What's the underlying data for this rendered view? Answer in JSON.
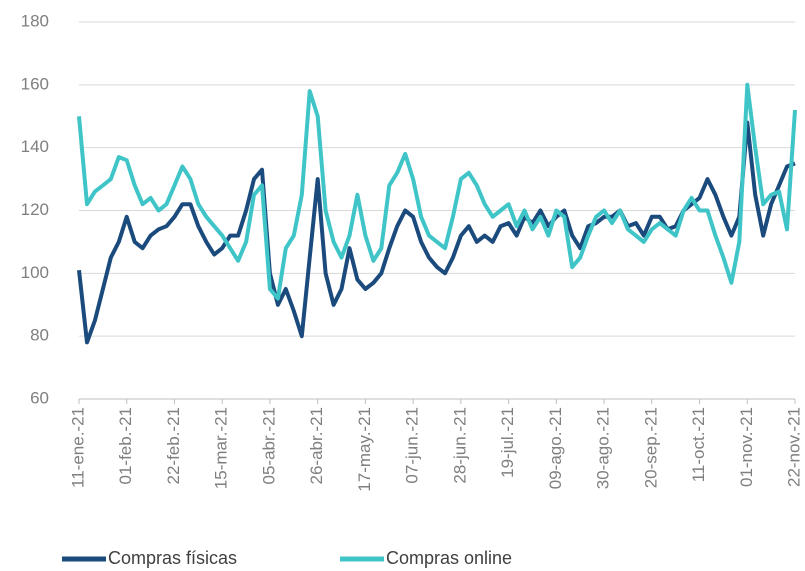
{
  "chart_data": {
    "type": "line",
    "categories": [
      "11-ene.-21",
      null,
      null,
      null,
      null,
      null,
      "01-feb.-21",
      null,
      null,
      null,
      null,
      null,
      "22-feb.-21",
      null,
      null,
      null,
      null,
      null,
      "15-mar.-21",
      null,
      null,
      null,
      null,
      null,
      "05-abr.-21",
      null,
      null,
      null,
      null,
      null,
      "26-abr.-21",
      null,
      null,
      null,
      null,
      null,
      "17-may.-21",
      null,
      null,
      null,
      null,
      null,
      "07-jun.-21",
      null,
      null,
      null,
      null,
      null,
      "28-jun.-21",
      null,
      null,
      null,
      null,
      null,
      "19-jul.-21",
      null,
      null,
      null,
      null,
      null,
      "09-ago.-21",
      null,
      null,
      null,
      null,
      null,
      "30-ago.-21",
      null,
      null,
      null,
      null,
      null,
      "20-sep.-21",
      null,
      null,
      null,
      null,
      null,
      "11-oct.-21",
      null,
      null,
      null,
      null,
      null,
      "01-nov.-21",
      null,
      null,
      null,
      null,
      null,
      "22-nov.-21"
    ],
    "series": [
      {
        "name": "Compras físicas",
        "color": "#1b4a7d",
        "values": [
          101,
          78,
          85,
          95,
          105,
          110,
          118,
          110,
          108,
          112,
          114,
          115,
          118,
          122,
          122,
          115,
          110,
          106,
          108,
          112,
          112,
          120,
          130,
          133,
          100,
          90,
          95,
          88,
          80,
          105,
          130,
          100,
          90,
          95,
          108,
          98,
          95,
          97,
          100,
          108,
          115,
          120,
          118,
          110,
          105,
          102,
          100,
          105,
          112,
          115,
          110,
          112,
          110,
          115,
          116,
          112,
          118,
          116,
          120,
          115,
          118,
          120,
          112,
          108,
          115,
          116,
          118,
          118,
          120,
          115,
          116,
          112,
          118,
          118,
          114,
          115,
          120,
          122,
          124,
          130,
          125,
          118,
          112,
          118,
          148,
          125,
          112,
          122,
          128,
          134,
          135
        ]
      },
      {
        "name": "Compras online",
        "color": "#3fc5c8",
        "values": [
          150,
          122,
          126,
          128,
          130,
          137,
          136,
          128,
          122,
          124,
          120,
          122,
          128,
          134,
          130,
          122,
          118,
          115,
          112,
          108,
          104,
          110,
          125,
          128,
          95,
          92,
          108,
          112,
          125,
          158,
          150,
          120,
          110,
          105,
          112,
          125,
          112,
          104,
          108,
          128,
          132,
          138,
          130,
          118,
          112,
          110,
          108,
          118,
          130,
          132,
          128,
          122,
          118,
          120,
          122,
          115,
          120,
          114,
          118,
          112,
          120,
          118,
          102,
          105,
          112,
          118,
          120,
          116,
          120,
          114,
          112,
          110,
          114,
          116,
          114,
          112,
          120,
          124,
          120,
          120,
          112,
          105,
          97,
          110,
          160,
          140,
          122,
          125,
          126,
          114,
          152
        ]
      }
    ],
    "ylim": [
      60,
      180
    ],
    "yticks": [
      60,
      80,
      100,
      120,
      140,
      160,
      180
    ],
    "grid": true
  }
}
